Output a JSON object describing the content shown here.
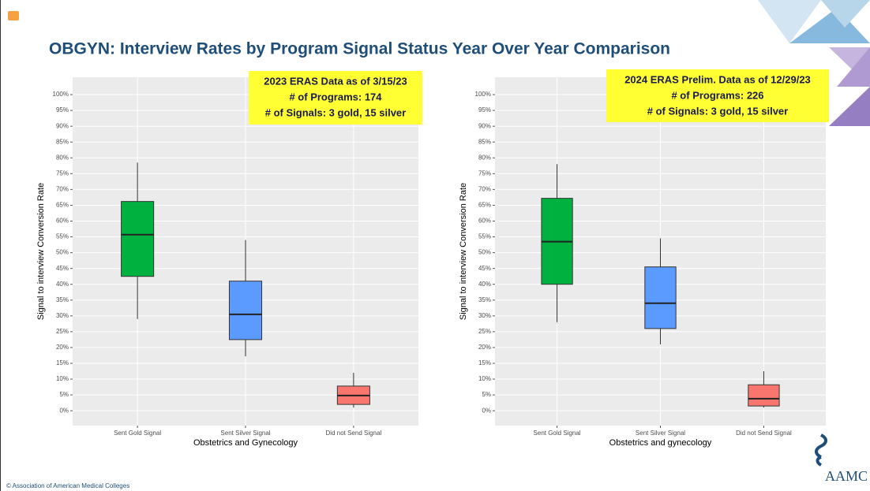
{
  "title": "OBGYN: Interview Rates by Program Signal Status Year Over Year Comparison",
  "footer": "© Association of American Medical Colleges",
  "logo": "AAMC",
  "chart_data": [
    {
      "type": "box",
      "annotation": [
        "2023 ERAS Data as of 3/15/23",
        "# of Programs: 174",
        "# of Signals: 3 gold, 15 silver"
      ],
      "xlabel": "Obstetrics and Gynecology",
      "ylabel": "Signal to interview Conversion Rate",
      "categories": [
        "Sent Gold Signal",
        "Sent Silver Signal",
        "Did not Send Signal"
      ],
      "colors": [
        "#00b140",
        "#5b9bff",
        "#f8766d"
      ],
      "min": [
        29,
        17.2,
        1
      ],
      "q1": [
        42.5,
        22.5,
        2
      ],
      "median": [
        55.7,
        30.5,
        4.8
      ],
      "q3": [
        66.2,
        41,
        7.8
      ],
      "max": [
        78.5,
        54,
        12
      ],
      "ylim": [
        -4.7,
        105.5
      ],
      "yticks": [
        {
          "value": 0,
          "label": "0%"
        },
        {
          "value": 5,
          "label": "5%"
        },
        {
          "value": 10,
          "label": "10%"
        },
        {
          "value": 15,
          "label": "15%"
        },
        {
          "value": 20,
          "label": "20%"
        },
        {
          "value": 25,
          "label": "25%"
        },
        {
          "value": 30,
          "label": "30%"
        },
        {
          "value": 35,
          "label": "35%"
        },
        {
          "value": 40,
          "label": "40%"
        },
        {
          "value": 45,
          "label": "45%"
        },
        {
          "value": 50,
          "label": "50%"
        },
        {
          "value": 55,
          "label": "55%"
        },
        {
          "value": 60,
          "label": "60%"
        },
        {
          "value": 65,
          "label": "65%"
        },
        {
          "value": 70,
          "label": "70%"
        },
        {
          "value": 75,
          "label": "75%"
        },
        {
          "value": 80,
          "label": "80%"
        },
        {
          "value": 85,
          "label": "85%"
        },
        {
          "value": 90,
          "label": "90%"
        },
        {
          "value": 95,
          "label": "95%"
        },
        {
          "value": 100,
          "label": "100%"
        }
      ],
      "grid": true
    },
    {
      "type": "box",
      "annotation": [
        "2024 ERAS Prelim. Data as of 12/29/23",
        "# of Programs: 226",
        "# of Signals: 3 gold, 15 silver"
      ],
      "xlabel": "Obstetrics and gynecology",
      "ylabel": "Signal to interview Conversion Rate",
      "categories": [
        "Sent Gold Signal",
        "Sent Silver Signal",
        "Did not Send Signal"
      ],
      "colors": [
        "#00b140",
        "#5b9bff",
        "#f8766d"
      ],
      "min": [
        28,
        21,
        1
      ],
      "q1": [
        40,
        26,
        1.5
      ],
      "median": [
        53.5,
        34,
        3.8
      ],
      "q3": [
        67.2,
        45.5,
        8.2
      ],
      "max": [
        78,
        54.5,
        12.5
      ],
      "ylim": [
        -4.7,
        105.5
      ],
      "yticks": [
        {
          "value": 0,
          "label": "0%"
        },
        {
          "value": 5,
          "label": "5%"
        },
        {
          "value": 10,
          "label": "10%"
        },
        {
          "value": 15,
          "label": "15%"
        },
        {
          "value": 20,
          "label": "20%"
        },
        {
          "value": 25,
          "label": "25%"
        },
        {
          "value": 30,
          "label": "30%"
        },
        {
          "value": 35,
          "label": "35%"
        },
        {
          "value": 40,
          "label": "40%"
        },
        {
          "value": 45,
          "label": "45%"
        },
        {
          "value": 50,
          "label": "50%"
        },
        {
          "value": 55,
          "label": "55%"
        },
        {
          "value": 60,
          "label": "60%"
        },
        {
          "value": 65,
          "label": "65%"
        },
        {
          "value": 70,
          "label": "70%"
        },
        {
          "value": 75,
          "label": "75%"
        },
        {
          "value": 80,
          "label": "80%"
        },
        {
          "value": 85,
          "label": "85%"
        },
        {
          "value": 90,
          "label": "90%"
        },
        {
          "value": 95,
          "label": "95%"
        },
        {
          "value": 100,
          "label": "100%"
        }
      ],
      "grid": true
    }
  ]
}
